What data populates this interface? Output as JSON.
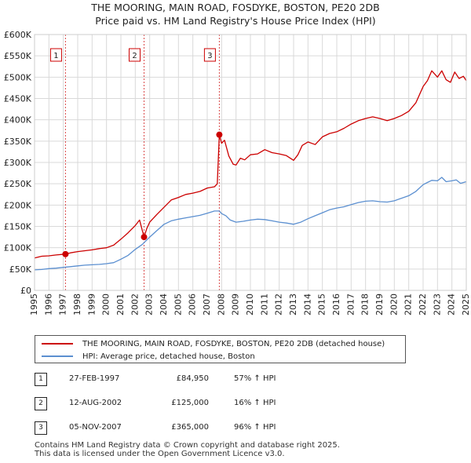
{
  "chart_data": {
    "type": "line",
    "title": "THE MOORING, MAIN ROAD, FOSDYKE, BOSTON, PE20 2DB",
    "subtitle": "Price paid vs. HM Land Registry's House Price Index (HPI)",
    "xlabel": "",
    "ylabel": "",
    "xlim": [
      1995,
      2025
    ],
    "ylim": [
      0,
      600000
    ],
    "x_ticks": [
      "1995",
      "1996",
      "1997",
      "1998",
      "1999",
      "2000",
      "2001",
      "2002",
      "2003",
      "2004",
      "2005",
      "2006",
      "2007",
      "2008",
      "2009",
      "2010",
      "2011",
      "2012",
      "2013",
      "2014",
      "2015",
      "2016",
      "2017",
      "2018",
      "2019",
      "2020",
      "2021",
      "2022",
      "2023",
      "2024",
      "2025"
    ],
    "y_ticks": [
      {
        "value": 0,
        "label": "£0"
      },
      {
        "value": 50000,
        "label": "£50K"
      },
      {
        "value": 100000,
        "label": "£100K"
      },
      {
        "value": 150000,
        "label": "£150K"
      },
      {
        "value": 200000,
        "label": "£200K"
      },
      {
        "value": 250000,
        "label": "£250K"
      },
      {
        "value": 300000,
        "label": "£300K"
      },
      {
        "value": 350000,
        "label": "£350K"
      },
      {
        "value": 400000,
        "label": "£400K"
      },
      {
        "value": 450000,
        "label": "£450K"
      },
      {
        "value": 500000,
        "label": "£500K"
      },
      {
        "value": 550000,
        "label": "£550K"
      },
      {
        "value": 600000,
        "label": "£600K"
      }
    ],
    "grid": true,
    "series": [
      {
        "name": "THE MOORING, MAIN ROAD, FOSDYKE, BOSTON, PE20 2DB (detached house)",
        "color": "#cc0000",
        "x": [
          1995.0,
          1995.5,
          1996.0,
          1996.5,
          1997.15,
          1997.5,
          1998.0,
          1998.5,
          1999.0,
          1999.5,
          2000.0,
          2000.5,
          2001.0,
          2001.5,
          2002.0,
          2002.3,
          2002.61,
          2002.8,
          2003.0,
          2003.5,
          2004.0,
          2004.5,
          2005.0,
          2005.5,
          2006.0,
          2006.5,
          2007.0,
          2007.5,
          2007.7,
          2007.84,
          2008.0,
          2008.2,
          2008.5,
          2008.8,
          2009.0,
          2009.3,
          2009.6,
          2010.0,
          2010.5,
          2011.0,
          2011.5,
          2012.0,
          2012.5,
          2013.0,
          2013.3,
          2013.6,
          2014.0,
          2014.5,
          2015.0,
          2015.5,
          2016.0,
          2016.5,
          2017.0,
          2017.5,
          2018.0,
          2018.5,
          2019.0,
          2019.5,
          2020.0,
          2020.5,
          2021.0,
          2021.5,
          2022.0,
          2022.3,
          2022.6,
          2023.0,
          2023.3,
          2023.6,
          2023.9,
          2024.2,
          2024.5,
          2024.8,
          2025.0
        ],
        "values": [
          76000,
          80000,
          81000,
          83000,
          84950,
          88000,
          91000,
          93000,
          95000,
          98000,
          100000,
          106000,
          120000,
          135000,
          152000,
          165000,
          125000,
          145000,
          160000,
          178000,
          195000,
          212000,
          218000,
          225000,
          228000,
          232000,
          240000,
          243000,
          250000,
          365000,
          345000,
          352000,
          315000,
          296000,
          294000,
          310000,
          306000,
          318000,
          320000,
          330000,
          323000,
          320000,
          316000,
          305000,
          318000,
          340000,
          348000,
          342000,
          360000,
          368000,
          372000,
          380000,
          390000,
          398000,
          403000,
          407000,
          403000,
          398000,
          403000,
          410000,
          420000,
          440000,
          478000,
          492000,
          515000,
          500000,
          515000,
          494000,
          488000,
          512000,
          497000,
          502000,
          492000
        ]
      },
      {
        "name": "HPI: Average price, detached house, Boston",
        "color": "#5b8fd0",
        "x": [
          1995.0,
          1995.5,
          1996.0,
          1996.5,
          1997.0,
          1997.5,
          1998.0,
          1998.5,
          1999.0,
          1999.5,
          2000.0,
          2000.5,
          2001.0,
          2001.5,
          2002.0,
          2002.5,
          2003.0,
          2003.5,
          2004.0,
          2004.5,
          2005.0,
          2005.5,
          2006.0,
          2006.5,
          2007.0,
          2007.5,
          2007.84,
          2008.0,
          2008.3,
          2008.6,
          2009.0,
          2009.5,
          2010.0,
          2010.5,
          2011.0,
          2011.5,
          2012.0,
          2012.5,
          2013.0,
          2013.5,
          2014.0,
          2014.5,
          2015.0,
          2015.5,
          2016.0,
          2016.5,
          2017.0,
          2017.5,
          2018.0,
          2018.5,
          2019.0,
          2019.5,
          2020.0,
          2020.5,
          2021.0,
          2021.5,
          2022.0,
          2022.3,
          2022.6,
          2023.0,
          2023.3,
          2023.6,
          2024.0,
          2024.3,
          2024.6,
          2025.0
        ],
        "values": [
          48000,
          49000,
          51000,
          52000,
          54000,
          55500,
          57500,
          59000,
          60000,
          61000,
          62500,
          65000,
          73000,
          82000,
          96000,
          108000,
          125000,
          140000,
          155000,
          163000,
          167000,
          170000,
          173000,
          176000,
          181000,
          186000,
          186000,
          180000,
          175000,
          165000,
          160000,
          162000,
          165000,
          167000,
          166000,
          163000,
          160000,
          158000,
          155000,
          160000,
          168000,
          175000,
          182000,
          189000,
          193000,
          196000,
          201000,
          206000,
          209000,
          210000,
          208000,
          207000,
          210000,
          216000,
          222000,
          232000,
          248000,
          253000,
          258000,
          257000,
          265000,
          255000,
          257000,
          259000,
          251000,
          255000
        ]
      }
    ],
    "annotations": [
      {
        "label": "1",
        "x": 1997.15,
        "value": 84950
      },
      {
        "label": "2",
        "x": 2002.61,
        "value": 125000
      },
      {
        "label": "3",
        "x": 2007.84,
        "value": 365000
      }
    ]
  },
  "legend": {
    "property_label": "THE MOORING, MAIN ROAD, FOSDYKE, BOSTON, PE20 2DB (detached house)",
    "hpi_label": "HPI: Average price, detached house, Boston"
  },
  "transactions": [
    {
      "num": "1",
      "date": "27-FEB-1997",
      "price": "£84,950",
      "hpi": "57% ↑ HPI"
    },
    {
      "num": "2",
      "date": "12-AUG-2002",
      "price": "£125,000",
      "hpi": "16% ↑ HPI"
    },
    {
      "num": "3",
      "date": "05-NOV-2007",
      "price": "£365,000",
      "hpi": "96% ↑ HPI"
    }
  ],
  "footer": {
    "line1": "Contains HM Land Registry data © Crown copyright and database right 2025.",
    "line2": "This data is licensed under the Open Government Licence v3.0."
  }
}
